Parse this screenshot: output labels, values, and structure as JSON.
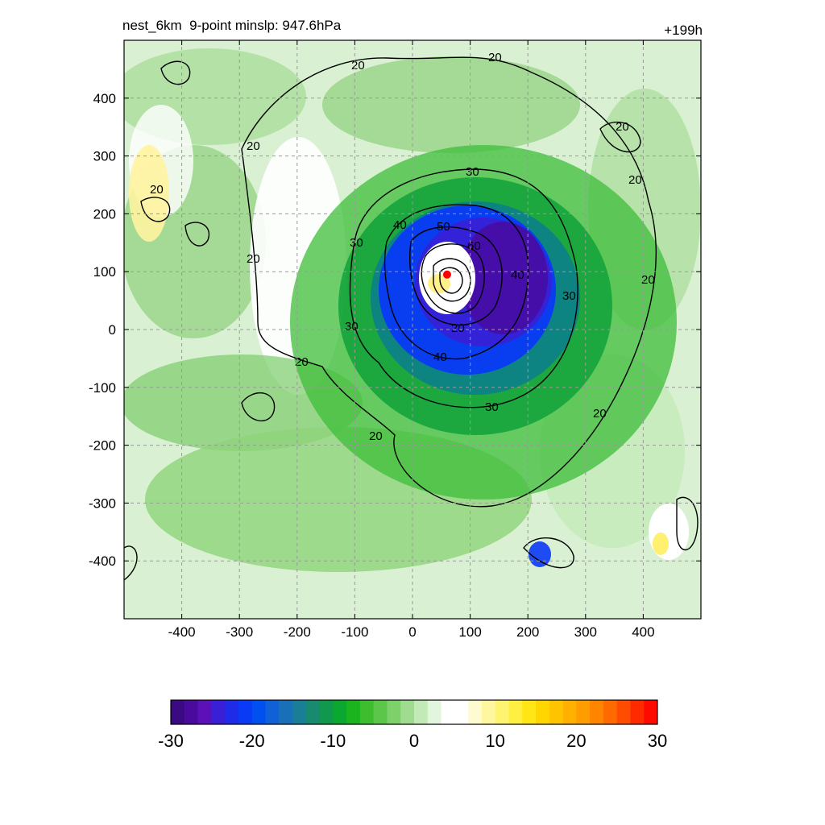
{
  "header": {
    "title_left": "nest_6km  9-point minslp: 947.6hPa",
    "title_right": "+199h"
  },
  "colors": {
    "contour": "#000000",
    "center_marker": "#ff0000",
    "grid": "#999999"
  },
  "chart_data": {
    "type": "heatmap",
    "x_ticks": [
      -400,
      -300,
      -200,
      -100,
      0,
      100,
      200,
      300,
      400
    ],
    "y_ticks": [
      400,
      300,
      200,
      100,
      0,
      -100,
      -200,
      -300,
      -400
    ],
    "xlim": [
      -500,
      500
    ],
    "ylim": [
      -500,
      500
    ],
    "grid": true,
    "storm_center": {
      "x": 60,
      "y": 95
    },
    "contour_levels": [
      "20",
      "30",
      "40",
      "50",
      "60"
    ],
    "colorbar": {
      "min": -30,
      "max": 30,
      "tick_labels": [
        "-30",
        "-20",
        "-10",
        "0",
        "10",
        "20",
        "30"
      ],
      "colors": [
        "#3b0a82",
        "#4a0a9c",
        "#5c10b8",
        "#3a1fd6",
        "#1e2ce8",
        "#0a3af5",
        "#0050f0",
        "#1060d8",
        "#1a70b8",
        "#1a7e96",
        "#178a70",
        "#10984c",
        "#0aa830",
        "#1bb41e",
        "#3ebd2e",
        "#5cc64a",
        "#7ed06a",
        "#a0dc90",
        "#c2eab6",
        "#e2f6de",
        "#ffffff",
        "#ffffff",
        "#fffbd0",
        "#fff7a0",
        "#fff470",
        "#ffef40",
        "#ffe614",
        "#ffd600",
        "#ffc400",
        "#ffb000",
        "#ff9c00",
        "#ff8400",
        "#ff6a00",
        "#ff4c00",
        "#ff2a00",
        "#ff0a00"
      ]
    }
  }
}
